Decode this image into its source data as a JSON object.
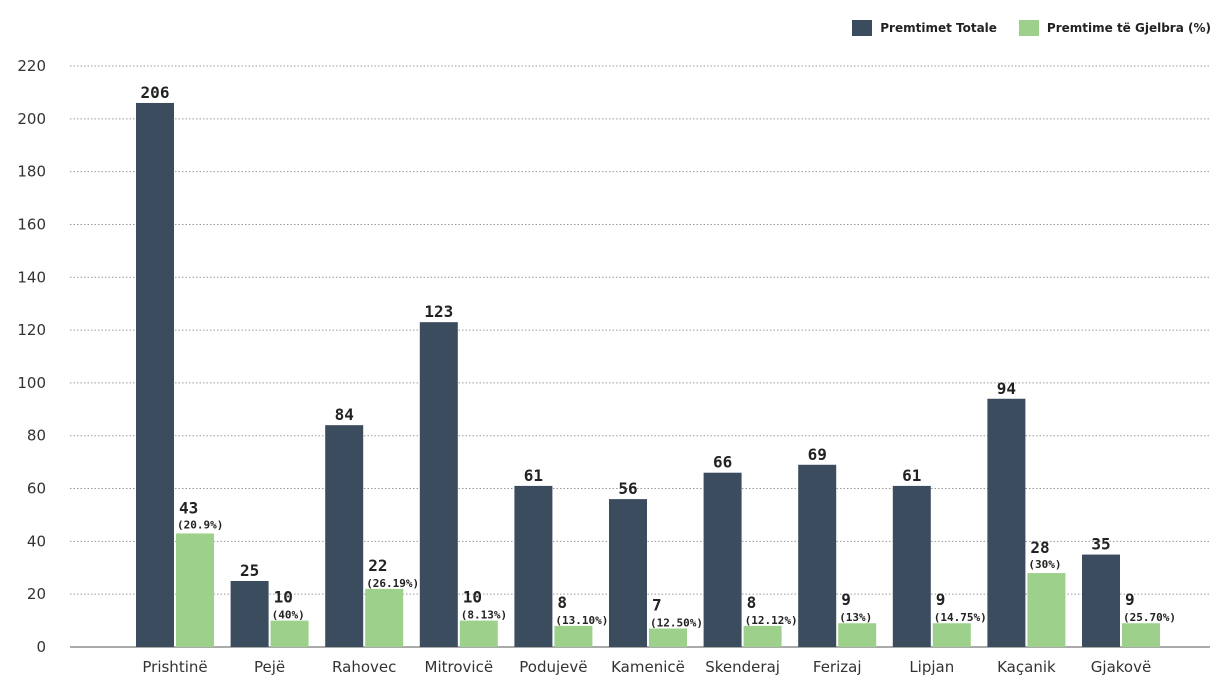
{
  "colors": {
    "total": "#3a4c5e",
    "green": "#9dd18b",
    "grid": "#9a9a9a",
    "axis": "#555555"
  },
  "chart_data": {
    "type": "bar",
    "categories": [
      "Prishtinë",
      "Pejë",
      "Rahovec",
      "Mitrovicë",
      "Podujevë",
      "Kamenicë",
      "Skenderaj",
      "Ferizaj",
      "Lipjan",
      "Kaçanik",
      "Gjakovë"
    ],
    "series": [
      {
        "name": "Premtimet Totale",
        "values": [
          206,
          25,
          84,
          123,
          61,
          56,
          66,
          69,
          61,
          94,
          35
        ]
      },
      {
        "name": "Premtime të Gjelbra (%)",
        "values": [
          43,
          10,
          22,
          10,
          8,
          7,
          8,
          9,
          9,
          28,
          9
        ],
        "percent_labels": [
          "(20.9%)",
          "(40%)",
          "(26.19%)",
          "(8.13%)",
          "(13.10%)",
          "(12.50%)",
          "(12.12%)",
          "(13%)",
          "(14.75%)",
          "(30%)",
          "(25.70%)"
        ]
      }
    ],
    "yticks": [
      0,
      20,
      40,
      60,
      80,
      100,
      120,
      140,
      160,
      180,
      200,
      220
    ],
    "ylim": [
      0,
      220
    ],
    "grid": true,
    "legend_position": "top-right"
  }
}
